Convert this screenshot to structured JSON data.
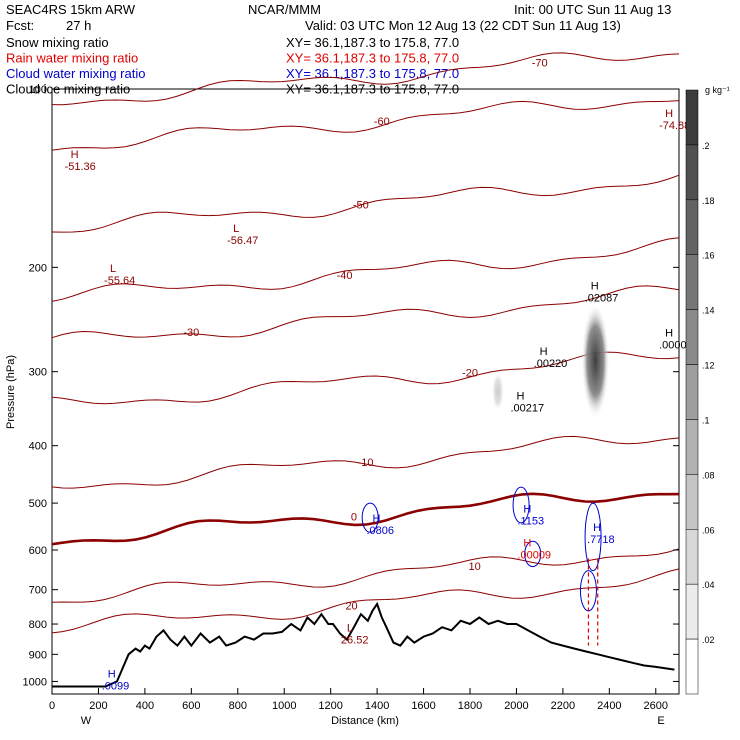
{
  "header": {
    "run": "SEAC4RS 15km ARW",
    "center": "NCAR/MMM",
    "init": "Init: 00 UTC Sun 11 Aug 13",
    "fcst_label": "Fcst:",
    "fcst_value": "27 h",
    "valid": "Valid: 03 UTC Mon 12 Aug 13 (22 CDT Sun 11 Aug 13)"
  },
  "fields": [
    {
      "name": "Snow mixing ratio",
      "xy": "XY=  36.1,187.3 to 175.8, 77.0",
      "color": "#000000"
    },
    {
      "name": "Rain water mixing ratio",
      "xy": "XY=  36.1,187.3 to 175.8, 77.0",
      "color": "#e00000"
    },
    {
      "name": "Cloud water mixing ratio",
      "xy": "XY=  36.1,187.3 to 175.8, 77.0",
      "color": "#0000cc"
    },
    {
      "name": "Cloud ice mixing ratio",
      "xy": "XY=  36.1,187.3 to 175.8, 77.0",
      "color": "#000000"
    }
  ],
  "colorbar": {
    "unit": "g kg⁻¹",
    "ticks": [
      ".2",
      ".18",
      ".16",
      ".14",
      ".12",
      ".1",
      ".08",
      ".06",
      ".04",
      ".02"
    ]
  },
  "chart_data": {
    "type": "contour",
    "xlabel": "Distance (km)",
    "ylabel": "Pressure (hPa)",
    "xlim": [
      0,
      2700
    ],
    "ylim": [
      1050,
      100
    ],
    "x_ticks": [
      0,
      200,
      400,
      600,
      800,
      1000,
      1200,
      1400,
      1600,
      1800,
      2000,
      2200,
      2400,
      2600
    ],
    "y_ticks": [
      100,
      200,
      300,
      400,
      500,
      600,
      700,
      800,
      900,
      1000
    ],
    "end_labels": {
      "left": "W",
      "right": "E"
    },
    "isotherm_labels": [
      "-70",
      "-60",
      "-50",
      "-40",
      "-30",
      "-20",
      "-10",
      "0",
      "10",
      "20"
    ],
    "extrema": [
      {
        "type": "H",
        "value": "-51.36",
        "x": 80,
        "p": 135,
        "color": "#8b0000"
      },
      {
        "type": "L",
        "value": "-55.64",
        "x": 250,
        "p": 210,
        "color": "#8b0000"
      },
      {
        "type": "L",
        "value": "-56.47",
        "x": 780,
        "p": 180,
        "color": "#8b0000"
      },
      {
        "type": "L",
        "value": "26.52",
        "x": 1270,
        "p": 850,
        "color": "#8b0000"
      },
      {
        "type": "H",
        "value": ".0806",
        "x": 1380,
        "p": 555,
        "color": "#0000cc"
      },
      {
        "type": "H",
        "value": ".1153",
        "x": 2030,
        "p": 535,
        "color": "#0000cc"
      },
      {
        "type": "H",
        "value": ".00009",
        "x": 2030,
        "p": 610,
        "color": "#e00000"
      },
      {
        "type": "H",
        "value": ".00220",
        "x": 2100,
        "p": 290,
        "color": "#000000"
      },
      {
        "type": "H",
        "value": ".00217",
        "x": 2000,
        "p": 345,
        "color": "#000000"
      },
      {
        "type": "H",
        "value": ".02087",
        "x": 2320,
        "p": 225,
        "color": "#000000"
      },
      {
        "type": "H",
        "value": ".0000",
        "x": 2640,
        "p": 270,
        "color": "#000000"
      },
      {
        "type": "H",
        "value": ".7718",
        "x": 2330,
        "p": 575,
        "color": "#0000cc"
      },
      {
        "type": "H",
        "value": "-74.88",
        "x": 2640,
        "p": 115,
        "color": "#8b0000"
      },
      {
        "type": "H",
        "value": ".0099",
        "x": 240,
        "p": 1015,
        "color": "#0000cc"
      }
    ],
    "terrain": {
      "x": [
        0,
        230,
        280,
        330,
        360,
        380,
        400,
        420,
        450,
        480,
        510,
        540,
        570,
        600,
        640,
        680,
        720,
        750,
        790,
        830,
        870,
        910,
        950,
        990,
        1030,
        1070,
        1100,
        1130,
        1160,
        1190,
        1210,
        1240,
        1270,
        1300,
        1330,
        1360,
        1380,
        1400,
        1420,
        1440,
        1470,
        1500,
        1530,
        1560,
        1600,
        1640,
        1680,
        1720,
        1760,
        1800,
        1840,
        1880,
        1920,
        1960,
        2000,
        2050,
        2100,
        2150,
        2200,
        2250,
        2300,
        2350,
        2400,
        2450,
        2500,
        2550,
        2600,
        2640,
        2680
      ],
      "p": [
        1020,
        1020,
        1000,
        900,
        880,
        890,
        870,
        880,
        840,
        820,
        850,
        870,
        840,
        870,
        830,
        860,
        840,
        870,
        860,
        840,
        850,
        830,
        830,
        825,
        800,
        820,
        780,
        800,
        770,
        800,
        800,
        830,
        850,
        810,
        770,
        790,
        760,
        740,
        780,
        810,
        860,
        870,
        840,
        860,
        840,
        830,
        810,
        820,
        790,
        800,
        780,
        800,
        790,
        800,
        800,
        820,
        840,
        860,
        870,
        880,
        890,
        900,
        910,
        920,
        930,
        940,
        945,
        950,
        955
      ]
    },
    "snow_shading": [
      {
        "x": 2340,
        "p_top": 230,
        "p_bottom": 360,
        "max": 0.2
      },
      {
        "x": 1920,
        "p_top": 300,
        "p_bottom": 350,
        "max": 0.02
      }
    ]
  }
}
